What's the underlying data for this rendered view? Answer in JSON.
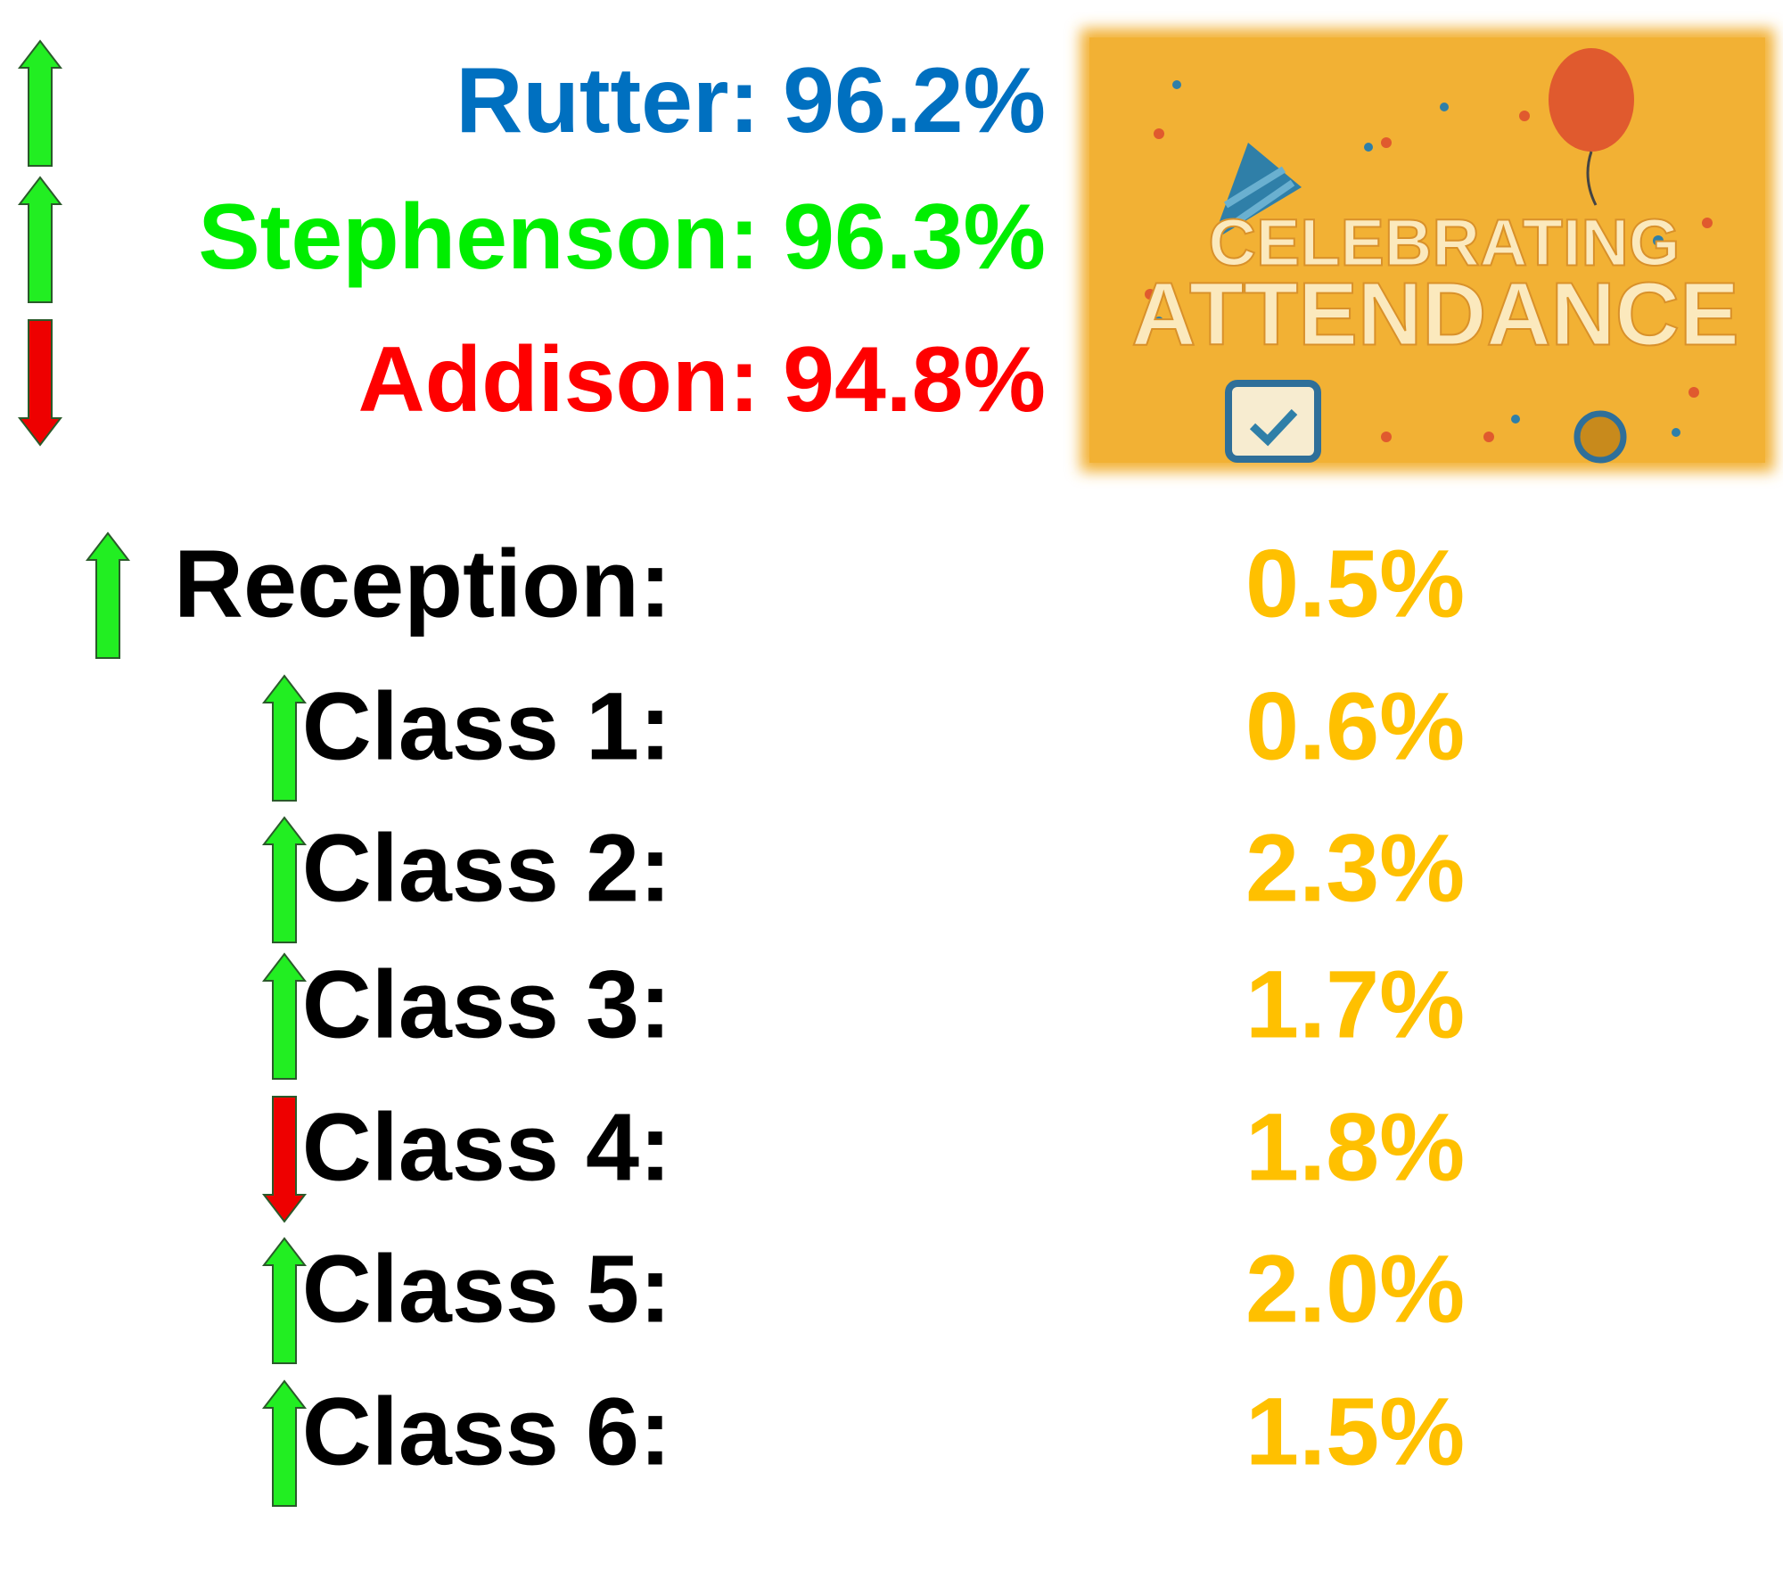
{
  "houses": [
    {
      "name": "Rutter:",
      "value": "96.2%",
      "trend": "up",
      "color": "#0070c0"
    },
    {
      "name": "Stephenson:",
      "value": "96.3%",
      "trend": "up",
      "color": "#00ee00"
    },
    {
      "name": "Addison:",
      "value": "94.8%",
      "trend": "down",
      "color": "#ff0000"
    }
  ],
  "banner": {
    "line1": "CELEBRATING",
    "line2": "ATTENDANCE"
  },
  "value_color": "#ffc000",
  "classes": [
    {
      "label": "Reception:",
      "value": "0.5%",
      "trend": "up"
    },
    {
      "label": "Class 1:",
      "value": "0.6%",
      "trend": "up"
    },
    {
      "label": "Class 2:",
      "value": "2.3%",
      "trend": "up"
    },
    {
      "label": "Class 3:",
      "value": "1.7%",
      "trend": "up"
    },
    {
      "label": "Class 4:",
      "value": "1.8%",
      "trend": "down"
    },
    {
      "label": "Class 5:",
      "value": "2.0%",
      "trend": "up"
    },
    {
      "label": "Class 6:",
      "value": "1.5%",
      "trend": "up"
    }
  ]
}
